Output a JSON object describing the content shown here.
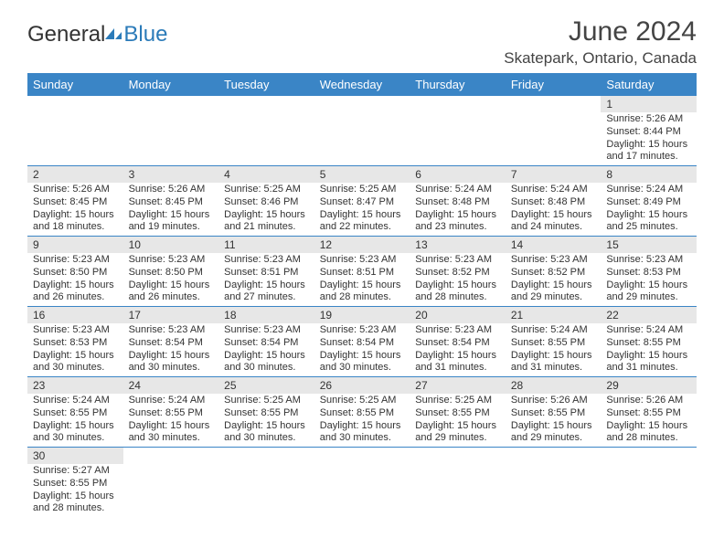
{
  "logo": {
    "part1": "General",
    "part2": "Blue"
  },
  "title": "June 2024",
  "location": "Skatepark, Ontario, Canada",
  "dayNames": [
    "Sunday",
    "Monday",
    "Tuesday",
    "Wednesday",
    "Thursday",
    "Friday",
    "Saturday"
  ],
  "colors": {
    "headerBar": "#3a85c6",
    "dayRow": "#e7e7e7",
    "ruleLine": "#3a85c6",
    "text": "#333333",
    "logoBlue": "#2b7bb9"
  },
  "weeks": [
    [
      null,
      null,
      null,
      null,
      null,
      null,
      {
        "n": "1",
        "sunrise": "Sunrise: 5:26 AM",
        "sunset": "Sunset: 8:44 PM",
        "daylight": "Daylight: 15 hours and 17 minutes."
      }
    ],
    [
      {
        "n": "2",
        "sunrise": "Sunrise: 5:26 AM",
        "sunset": "Sunset: 8:45 PM",
        "daylight": "Daylight: 15 hours and 18 minutes."
      },
      {
        "n": "3",
        "sunrise": "Sunrise: 5:26 AM",
        "sunset": "Sunset: 8:45 PM",
        "daylight": "Daylight: 15 hours and 19 minutes."
      },
      {
        "n": "4",
        "sunrise": "Sunrise: 5:25 AM",
        "sunset": "Sunset: 8:46 PM",
        "daylight": "Daylight: 15 hours and 21 minutes."
      },
      {
        "n": "5",
        "sunrise": "Sunrise: 5:25 AM",
        "sunset": "Sunset: 8:47 PM",
        "daylight": "Daylight: 15 hours and 22 minutes."
      },
      {
        "n": "6",
        "sunrise": "Sunrise: 5:24 AM",
        "sunset": "Sunset: 8:48 PM",
        "daylight": "Daylight: 15 hours and 23 minutes."
      },
      {
        "n": "7",
        "sunrise": "Sunrise: 5:24 AM",
        "sunset": "Sunset: 8:48 PM",
        "daylight": "Daylight: 15 hours and 24 minutes."
      },
      {
        "n": "8",
        "sunrise": "Sunrise: 5:24 AM",
        "sunset": "Sunset: 8:49 PM",
        "daylight": "Daylight: 15 hours and 25 minutes."
      }
    ],
    [
      {
        "n": "9",
        "sunrise": "Sunrise: 5:23 AM",
        "sunset": "Sunset: 8:50 PM",
        "daylight": "Daylight: 15 hours and 26 minutes."
      },
      {
        "n": "10",
        "sunrise": "Sunrise: 5:23 AM",
        "sunset": "Sunset: 8:50 PM",
        "daylight": "Daylight: 15 hours and 26 minutes."
      },
      {
        "n": "11",
        "sunrise": "Sunrise: 5:23 AM",
        "sunset": "Sunset: 8:51 PM",
        "daylight": "Daylight: 15 hours and 27 minutes."
      },
      {
        "n": "12",
        "sunrise": "Sunrise: 5:23 AM",
        "sunset": "Sunset: 8:51 PM",
        "daylight": "Daylight: 15 hours and 28 minutes."
      },
      {
        "n": "13",
        "sunrise": "Sunrise: 5:23 AM",
        "sunset": "Sunset: 8:52 PM",
        "daylight": "Daylight: 15 hours and 28 minutes."
      },
      {
        "n": "14",
        "sunrise": "Sunrise: 5:23 AM",
        "sunset": "Sunset: 8:52 PM",
        "daylight": "Daylight: 15 hours and 29 minutes."
      },
      {
        "n": "15",
        "sunrise": "Sunrise: 5:23 AM",
        "sunset": "Sunset: 8:53 PM",
        "daylight": "Daylight: 15 hours and 29 minutes."
      }
    ],
    [
      {
        "n": "16",
        "sunrise": "Sunrise: 5:23 AM",
        "sunset": "Sunset: 8:53 PM",
        "daylight": "Daylight: 15 hours and 30 minutes."
      },
      {
        "n": "17",
        "sunrise": "Sunrise: 5:23 AM",
        "sunset": "Sunset: 8:54 PM",
        "daylight": "Daylight: 15 hours and 30 minutes."
      },
      {
        "n": "18",
        "sunrise": "Sunrise: 5:23 AM",
        "sunset": "Sunset: 8:54 PM",
        "daylight": "Daylight: 15 hours and 30 minutes."
      },
      {
        "n": "19",
        "sunrise": "Sunrise: 5:23 AM",
        "sunset": "Sunset: 8:54 PM",
        "daylight": "Daylight: 15 hours and 30 minutes."
      },
      {
        "n": "20",
        "sunrise": "Sunrise: 5:23 AM",
        "sunset": "Sunset: 8:54 PM",
        "daylight": "Daylight: 15 hours and 31 minutes."
      },
      {
        "n": "21",
        "sunrise": "Sunrise: 5:24 AM",
        "sunset": "Sunset: 8:55 PM",
        "daylight": "Daylight: 15 hours and 31 minutes."
      },
      {
        "n": "22",
        "sunrise": "Sunrise: 5:24 AM",
        "sunset": "Sunset: 8:55 PM",
        "daylight": "Daylight: 15 hours and 31 minutes."
      }
    ],
    [
      {
        "n": "23",
        "sunrise": "Sunrise: 5:24 AM",
        "sunset": "Sunset: 8:55 PM",
        "daylight": "Daylight: 15 hours and 30 minutes."
      },
      {
        "n": "24",
        "sunrise": "Sunrise: 5:24 AM",
        "sunset": "Sunset: 8:55 PM",
        "daylight": "Daylight: 15 hours and 30 minutes."
      },
      {
        "n": "25",
        "sunrise": "Sunrise: 5:25 AM",
        "sunset": "Sunset: 8:55 PM",
        "daylight": "Daylight: 15 hours and 30 minutes."
      },
      {
        "n": "26",
        "sunrise": "Sunrise: 5:25 AM",
        "sunset": "Sunset: 8:55 PM",
        "daylight": "Daylight: 15 hours and 30 minutes."
      },
      {
        "n": "27",
        "sunrise": "Sunrise: 5:25 AM",
        "sunset": "Sunset: 8:55 PM",
        "daylight": "Daylight: 15 hours and 29 minutes."
      },
      {
        "n": "28",
        "sunrise": "Sunrise: 5:26 AM",
        "sunset": "Sunset: 8:55 PM",
        "daylight": "Daylight: 15 hours and 29 minutes."
      },
      {
        "n": "29",
        "sunrise": "Sunrise: 5:26 AM",
        "sunset": "Sunset: 8:55 PM",
        "daylight": "Daylight: 15 hours and 28 minutes."
      }
    ],
    [
      {
        "n": "30",
        "sunrise": "Sunrise: 5:27 AM",
        "sunset": "Sunset: 8:55 PM",
        "daylight": "Daylight: 15 hours and 28 minutes."
      },
      null,
      null,
      null,
      null,
      null,
      null
    ]
  ]
}
